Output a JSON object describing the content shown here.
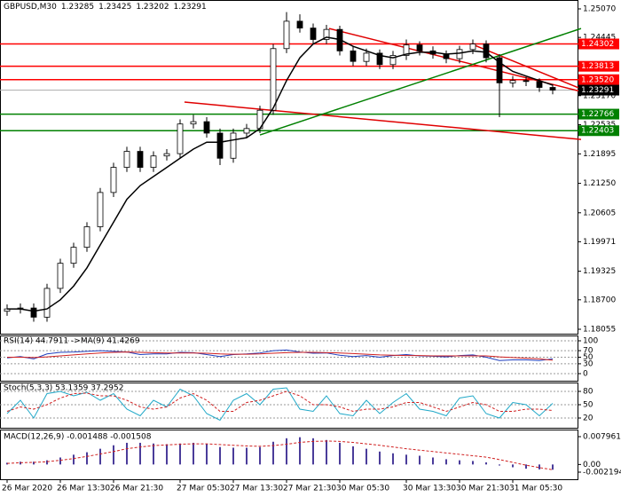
{
  "chart_data": [
    {
      "type": "candlestick",
      "title": "GBPUSD,M30",
      "header_values": [
        1.23285,
        1.23425,
        1.23202,
        1.23291
      ],
      "categories": [
        "26 Mar 2020",
        null,
        null,
        null,
        "26 Mar 13:30",
        null,
        null,
        null,
        "26 Mar 21:30",
        null,
        null,
        null,
        null,
        "27 Mar 05:30",
        null,
        null,
        null,
        "27 Mar 13:30",
        null,
        null,
        null,
        "27 Mar 21:30",
        null,
        null,
        null,
        "30 Mar 05:30",
        null,
        null,
        null,
        null,
        "30 Mar 13:30",
        null,
        null,
        null,
        "30 Mar 21:30",
        null,
        null,
        null,
        "31 Mar 05:30",
        null,
        null,
        null
      ],
      "open": [
        1.1845,
        1.185,
        1.1852,
        1.1832,
        1.1895,
        1.195,
        1.1985,
        1.203,
        1.2105,
        1.216,
        1.2195,
        1.216,
        1.2185,
        1.219,
        1.2255,
        1.226,
        1.2235,
        1.218,
        1.2235,
        1.2245,
        1.2285,
        1.242,
        1.248,
        1.2465,
        1.244,
        1.2462,
        1.2415,
        1.2392,
        1.241,
        1.2385,
        1.2405,
        1.2428,
        1.2415,
        1.2408,
        1.2398,
        1.2418,
        1.243,
        1.24,
        1.2345,
        1.235,
        1.2348,
        1.2335
      ],
      "high": [
        1.186,
        1.1862,
        1.1862,
        1.1905,
        1.196,
        1.1995,
        1.204,
        1.2115,
        1.217,
        1.2205,
        1.2205,
        1.2195,
        1.22,
        1.2265,
        1.2275,
        1.227,
        1.2245,
        1.2245,
        1.2255,
        1.2295,
        1.243,
        1.25,
        1.2495,
        1.2475,
        1.2472,
        1.247,
        1.2425,
        1.242,
        1.2418,
        1.2415,
        1.244,
        1.2436,
        1.2425,
        1.2416,
        1.2426,
        1.244,
        1.2438,
        1.2408,
        1.236,
        1.2358,
        1.2355,
        1.2342
      ],
      "low": [
        1.1835,
        1.184,
        1.1822,
        1.1822,
        1.1885,
        1.194,
        1.1975,
        1.202,
        1.2095,
        1.215,
        1.215,
        1.215,
        1.2175,
        1.218,
        1.2245,
        1.2225,
        1.2165,
        1.217,
        1.2225,
        1.2235,
        1.2275,
        1.241,
        1.2455,
        1.243,
        1.243,
        1.2405,
        1.2382,
        1.2382,
        1.2375,
        1.2375,
        1.2395,
        1.2405,
        1.2398,
        1.2388,
        1.2388,
        1.2408,
        1.239,
        1.227,
        1.2335,
        1.2338,
        1.2325,
        1.232
      ],
      "close": [
        1.185,
        1.1852,
        1.1832,
        1.1895,
        1.195,
        1.1985,
        1.203,
        1.2105,
        1.216,
        1.2195,
        1.216,
        1.2185,
        1.219,
        1.2255,
        1.226,
        1.2235,
        1.218,
        1.2235,
        1.2245,
        1.2285,
        1.242,
        1.248,
        1.2465,
        1.244,
        1.2462,
        1.2415,
        1.2392,
        1.241,
        1.2385,
        1.2405,
        1.2428,
        1.2415,
        1.2408,
        1.2398,
        1.2418,
        1.243,
        1.24,
        1.2345,
        1.235,
        1.2348,
        1.2335,
        1.2329
      ],
      "up_color": "#ffffff",
      "down_color": "#000000",
      "wick_color": "#000000",
      "ma": {
        "color": "#000000",
        "values": [
          1.185,
          1.185,
          1.1845,
          1.185,
          1.187,
          1.19,
          1.194,
          1.199,
          1.204,
          1.209,
          1.212,
          1.214,
          1.216,
          1.218,
          1.22,
          1.2215,
          1.2215,
          1.222,
          1.2225,
          1.2245,
          1.229,
          1.235,
          1.24,
          1.243,
          1.2445,
          1.244,
          1.2425,
          1.2415,
          1.2405,
          1.24,
          1.2408,
          1.2412,
          1.2412,
          1.2408,
          1.241,
          1.2415,
          1.2412,
          1.239,
          1.237,
          1.236,
          1.235,
          1.234
        ]
      },
      "ylim": [
        1.18055,
        1.2507
      ],
      "yticks": [
        {
          "value": 1.2507,
          "label": "1.25070"
        },
        1.24445,
        {
          "value": 1.2317,
          "label": "1.23170"
        },
        1.22535,
        1.21895,
        {
          "value": 1.2125,
          "label": "1.21250"
        },
        1.20605,
        1.19971,
        1.19325,
        {
          "value": 1.187,
          "label": "1.18700"
        },
        1.18055
      ],
      "levels": [
        {
          "value": 1.24302,
          "color": "#ff0000"
        },
        {
          "value": 1.23813,
          "color": "#ff0000"
        },
        {
          "value": {
            "value": 1.2352,
            "label": "1.23520"
          },
          "color": "#ff0000"
        },
        {
          "value": 1.22766,
          "color": "#008000"
        },
        {
          "value": 1.22403,
          "color": "#008000"
        }
      ],
      "current_price": {
        "value": 1.23291,
        "color": "#000000",
        "line_color": "#b0b0b0"
      },
      "trendlines": [
        {
          "color": "#e00000",
          "x": [
            13.33,
            43.13
          ],
          "y": [
            1.2303,
            1.2221
          ]
        },
        {
          "color": "#e00000",
          "x": [
            24.2,
            43.13
          ],
          "y": [
            1.2464,
            1.2326
          ]
        },
        {
          "color": "#e00000",
          "x": [
            35,
            43.13
          ],
          "y": [
            1.2429,
            1.2332
          ]
        },
        {
          "color": "#008000",
          "x": [
            19,
            43.13
          ],
          "y": [
            1.2231,
            1.2464
          ]
        }
      ]
    },
    {
      "type": "line",
      "title": "RSI(14) 44.7911 ->MA(9) 41.4269",
      "series": [
        {
          "color": "#1f3fbf",
          "values": [
            48,
            52,
            45,
            60,
            65,
            66,
            68,
            70,
            68,
            66,
            58,
            60,
            60,
            65,
            64,
            58,
            52,
            58,
            60,
            63,
            70,
            72,
            66,
            62,
            63,
            56,
            52,
            55,
            50,
            55,
            58,
            54,
            53,
            51,
            55,
            57,
            50,
            40,
            42,
            42,
            40,
            45
          ]
        },
        {
          "color": "#d02020",
          "values": [
            50,
            50,
            49,
            51,
            54,
            57,
            60,
            63,
            65,
            66,
            65,
            64,
            63,
            63,
            63,
            62,
            60,
            59,
            59,
            60,
            62,
            64,
            65,
            65,
            64,
            63,
            61,
            59,
            57,
            56,
            55,
            55,
            54,
            54,
            54,
            54,
            54,
            51,
            49,
            47,
            45,
            41
          ]
        }
      ],
      "ylim": [
        0,
        100
      ],
      "yticks": [
        100,
        70,
        50,
        30,
        0
      ],
      "grid": true
    },
    {
      "type": "line",
      "title": "Stoch(5,3,3) 53.1359 37.2952",
      "series": [
        {
          "color": "#20a8c8",
          "values": [
            30,
            60,
            20,
            75,
            80,
            70,
            78,
            60,
            75,
            40,
            25,
            60,
            45,
            85,
            70,
            30,
            15,
            60,
            75,
            50,
            85,
            88,
            40,
            35,
            70,
            30,
            25,
            60,
            30,
            55,
            75,
            40,
            35,
            25,
            65,
            70,
            30,
            20,
            55,
            50,
            25,
            53
          ]
        },
        {
          "color": "#d02020",
          "dash": true,
          "values": [
            35,
            45,
            40,
            50,
            65,
            75,
            76,
            70,
            70,
            60,
            45,
            40,
            45,
            65,
            75,
            60,
            35,
            35,
            55,
            60,
            70,
            80,
            70,
            50,
            50,
            45,
            35,
            40,
            40,
            45,
            55,
            55,
            45,
            35,
            45,
            55,
            50,
            35,
            35,
            40,
            40,
            37
          ]
        }
      ],
      "ylim": [
        0,
        100
      ],
      "yticks": [
        80,
        50,
        20
      ],
      "grid": true
    },
    {
      "type": "macd",
      "title": "MACD(12,26,9) -0.001488 -0.001508",
      "series": [
        {
          "color": "#4a3c9a",
          "values": [
            0.0005,
            0.0008,
            0.0008,
            0.0012,
            0.002,
            0.0028,
            0.0035,
            0.0045,
            0.0055,
            0.0062,
            0.0062,
            0.006,
            0.0058,
            0.006,
            0.0062,
            0.0058,
            0.005,
            0.0048,
            0.0048,
            0.005,
            0.0065,
            0.0075,
            0.0078,
            0.0075,
            0.007,
            0.0062,
            0.0052,
            0.0045,
            0.0037,
            0.0032,
            0.0028,
            0.0025,
            0.002,
            0.0015,
            0.0012,
            0.001,
            0.0006,
            -0.0003,
            -0.0008,
            -0.0012,
            -0.0014,
            -0.0015
          ]
        },
        {
          "color": "#d02020",
          "dash": true,
          "values": [
            0.0003,
            0.0005,
            0.0006,
            0.0008,
            0.0012,
            0.0017,
            0.0023,
            0.003,
            0.0037,
            0.0045,
            0.005,
            0.0054,
            0.0056,
            0.0058,
            0.0059,
            0.0059,
            0.0057,
            0.0055,
            0.0053,
            0.0052,
            0.0054,
            0.0058,
            0.0063,
            0.0066,
            0.0067,
            0.0066,
            0.0063,
            0.0059,
            0.0055,
            0.005,
            0.0045,
            0.0041,
            0.0037,
            0.0033,
            0.0029,
            0.0025,
            0.0021,
            0.0014,
            0.0006,
            -0.0002,
            -0.0009,
            -0.0015
          ]
        }
      ],
      "ylim": [
        -0.002194,
        0.007961
      ],
      "yticks": [
        0.007961,
        {
          "value": 0,
          "label": "0.00"
        },
        -0.002194
      ]
    }
  ]
}
